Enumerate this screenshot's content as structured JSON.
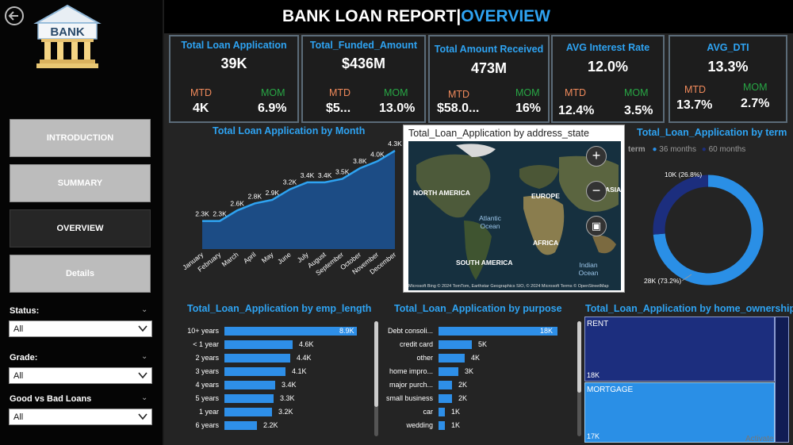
{
  "header": {
    "title_main": "BANK LOAN REPORT",
    "title_sep": "|",
    "title_page": "OVERVIEW"
  },
  "sidebar": {
    "logo_text": "BANK",
    "nav": [
      {
        "label": "INTRODUCTION",
        "active": false
      },
      {
        "label": "SUMMARY",
        "active": false
      },
      {
        "label": "OVERVIEW",
        "active": true
      },
      {
        "label": "Details",
        "active": false
      }
    ],
    "filters": [
      {
        "label": "Status:",
        "value": "All"
      },
      {
        "label": "Grade:",
        "value": "All"
      },
      {
        "label": "Good vs Bad Loans",
        "value": "All"
      }
    ]
  },
  "kpis": [
    {
      "title": "Total Loan Application",
      "value": "39K",
      "mtd_label": "MTD",
      "mtd": "4K",
      "mom_label": "MOM",
      "mom": "6.9%"
    },
    {
      "title": "Total_Funded_Amount",
      "value": "$436M",
      "mtd_label": "MTD",
      "mtd": "$5...",
      "mom_label": "MOM",
      "mom": "13.0%"
    },
    {
      "title": "Total Amount Received",
      "value": "473M",
      "mtd_label": "MTD",
      "mtd": "$58.0...",
      "mom_label": "MOM",
      "mom": "16%"
    },
    {
      "title": "AVG Interest Rate",
      "value": "12.0%",
      "mtd_label": "MTD",
      "mtd": "12.4%",
      "mom_label": "MOM",
      "mom": "3.5%"
    },
    {
      "title": "AVG_DTI",
      "value": "13.3%",
      "mtd_label": "MTD",
      "mtd": "13.7%",
      "mom_label": "MOM",
      "mom": "2.7%"
    }
  ],
  "map": {
    "title": "Total_Loan_Application by address_state",
    "labels": {
      "north_america": "NORTH AMERICA",
      "europe": "EUROPE",
      "asia": "ASIA",
      "africa": "AFRICA",
      "south_america": "SOUTH AMERICA",
      "atlantic": "Atlantic Ocean",
      "indian": "Indian Ocean"
    },
    "credit": "© 2024 TomTom, Earthstar Geographics SIO, © 2024 Microsoft Terms © OpenStreetMap",
    "brand": "Microsoft Bing"
  },
  "colors": {
    "accent": "#2ea3f2",
    "bar": "#2e8fe8",
    "term_36": "#2a8fe6",
    "term_60": "#1c2e7e",
    "mtd": "#f08a5b",
    "mom": "#28a745"
  },
  "chart_data": [
    {
      "type": "area",
      "title": "Total Loan Application by Month",
      "categories": [
        "January",
        "February",
        "March",
        "April",
        "May",
        "June",
        "July",
        "August",
        "September",
        "October",
        "November",
        "December"
      ],
      "values": [
        2.3,
        2.3,
        2.6,
        2.8,
        2.9,
        3.2,
        3.4,
        3.4,
        3.5,
        3.8,
        4.0,
        4.3
      ],
      "data_labels": [
        "2.3K",
        "2.3K",
        "2.6K",
        "2.8K",
        "2.9K",
        "3.2K",
        "3.4K",
        "3.4K",
        "3.5K",
        "3.8K",
        "4.0K",
        "4.3K"
      ]
    },
    {
      "type": "pie",
      "title": "Total_Loan_Application by term",
      "legend_title": "term",
      "categories": [
        "36 months",
        "60 months"
      ],
      "values": [
        28,
        10
      ],
      "data_labels": [
        "28K (73.2%)",
        "10K (26.8%)"
      ],
      "percentages": [
        73.2,
        26.8
      ]
    },
    {
      "type": "bar",
      "title": "Total_Loan_Application by emp_length",
      "categories": [
        "10+ years",
        "< 1 year",
        "2 years",
        "3 years",
        "4 years",
        "5 years",
        "1 year",
        "6 years"
      ],
      "values": [
        8.9,
        4.6,
        4.4,
        4.1,
        3.4,
        3.3,
        3.2,
        2.2
      ],
      "data_labels": [
        "8.9K",
        "4.6K",
        "4.4K",
        "4.1K",
        "3.4K",
        "3.3K",
        "3.2K",
        "2.2K"
      ]
    },
    {
      "type": "bar",
      "title": "Total_Loan_Application by purpose",
      "categories": [
        "Debt consoli...",
        "credit card",
        "other",
        "home impro...",
        "major purch...",
        "small business",
        "car",
        "wedding"
      ],
      "values": [
        18,
        5,
        4,
        3,
        2,
        2,
        1,
        1
      ],
      "data_labels": [
        "18K",
        "5K",
        "4K",
        "3K",
        "2K",
        "2K",
        "1K",
        "1K"
      ]
    },
    {
      "type": "heatmap",
      "title": "Total_Loan_Application by home_ownership",
      "categories": [
        "RENT",
        "MORTGAGE"
      ],
      "values": [
        18,
        17
      ],
      "data_labels": [
        "18K",
        "17K"
      ]
    }
  ],
  "watermark": "Activate"
}
